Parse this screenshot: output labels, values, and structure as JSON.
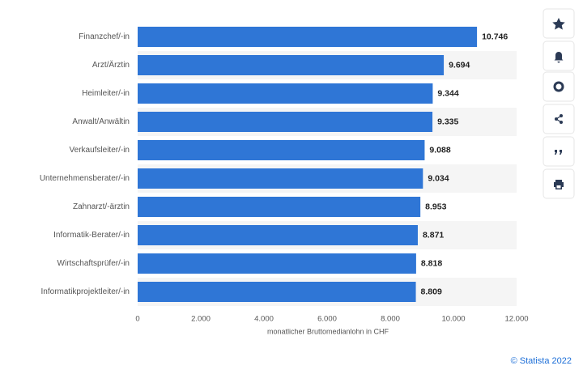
{
  "chart_data": {
    "type": "bar",
    "orientation": "horizontal",
    "categories": [
      "Finanzchef/-in",
      "Arzt/Ärztin",
      "Heimleiter/-in",
      "Anwalt/Anwältin",
      "Verkaufsleiter/-in",
      "Unternehmensberater/-in",
      "Zahnarzt/-ärztin",
      "Informatik-Berater/-in",
      "Wirtschaftsprüfer/-in",
      "Informatikprojektleiter/-in"
    ],
    "values": [
      10746,
      9694,
      9344,
      9335,
      9088,
      9034,
      8953,
      8871,
      8818,
      8809
    ],
    "value_labels": [
      "10.746",
      "9.694",
      "9.344",
      "9.335",
      "9.088",
      "9.034",
      "8.953",
      "8.871",
      "8.818",
      "8.809"
    ],
    "color": "#2f76d6",
    "xlim": [
      0,
      12000
    ],
    "xticks": [
      0,
      {
        "value": 2000,
        "label": "2.000"
      },
      {
        "value": 4000,
        "label": "4.000"
      },
      {
        "value": 6000,
        "label": "6.000"
      },
      {
        "value": 8000,
        "label": "8.000"
      },
      {
        "value": 10000,
        "label": "10.000"
      },
      {
        "value": 12000,
        "label": "12.000"
      }
    ],
    "x_label": "monatlicher Bruttomedianlohn in CHF",
    "credit": "© Statista 2022"
  }
}
